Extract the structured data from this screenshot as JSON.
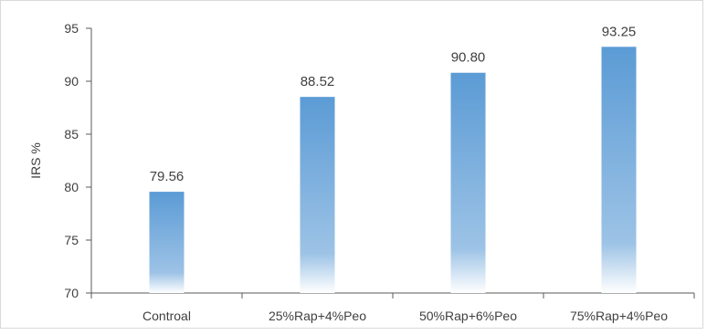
{
  "chart_data": {
    "type": "bar",
    "title": "",
    "xlabel": "",
    "ylabel": "IRS %",
    "categories": [
      "Controal",
      "25%Rap+4%Peo",
      "50%Rap+6%Peo",
      "75%Rap+4%Peo"
    ],
    "values": [
      79.56,
      88.52,
      90.8,
      93.25
    ],
    "data_labels": [
      "79.56",
      "88.52",
      "90.80",
      "93.25"
    ],
    "ylim": [
      70,
      95
    ],
    "yticks": [
      70,
      75,
      80,
      85,
      90,
      95
    ],
    "grid": false,
    "legend": "none",
    "colors": {
      "bar_top": "#5b9bd5",
      "bar_bottom": "#ffffff",
      "axis": "#595959",
      "text": "#404040"
    }
  }
}
